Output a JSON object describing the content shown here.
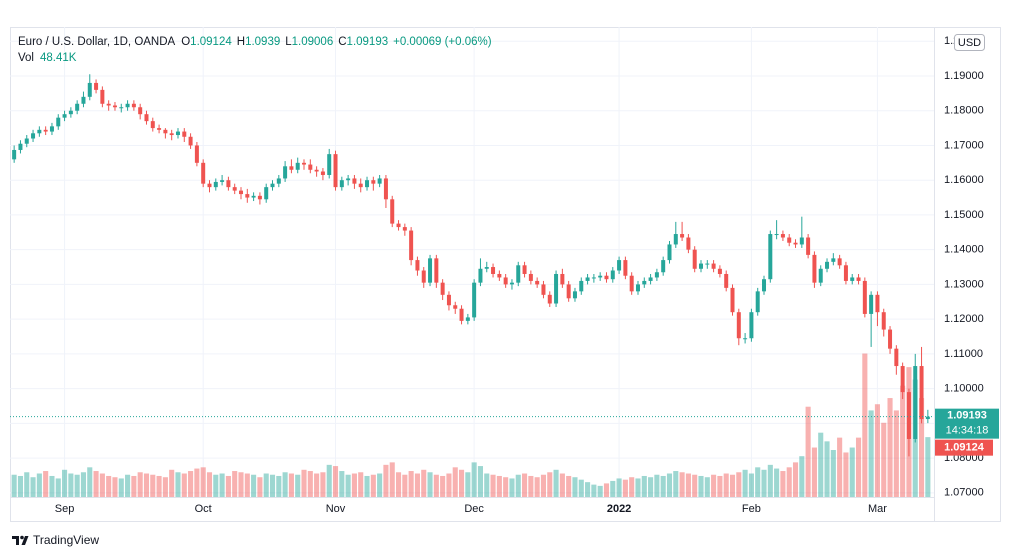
{
  "chart_data": {
    "type": "candlestick",
    "title": "Euro / U.S. Dollar, 1D, OANDA",
    "ohlc_labels": [
      "O",
      "H",
      "L",
      "C"
    ],
    "change_label": "+0.00069 (+0.06%)",
    "volume_title": "Vol",
    "volume_last_label": "48.41K",
    "currency": "USD",
    "countdown": "14:34:18",
    "brand": "TradingView",
    "up_color": "#26a69a",
    "down_color": "#ef5350",
    "volume_up_color": "rgba(38,166,154,0.45)",
    "volume_down_color": "rgba(239,83,80,0.45)",
    "grid": true,
    "categories": [
      null,
      null,
      null,
      null,
      null,
      null,
      null,
      null,
      "Sep",
      null,
      null,
      null,
      null,
      null,
      null,
      null,
      null,
      null,
      null,
      null,
      null,
      null,
      null,
      null,
      null,
      null,
      null,
      null,
      null,
      null,
      "Oct",
      null,
      null,
      null,
      null,
      null,
      null,
      null,
      null,
      null,
      null,
      null,
      null,
      null,
      null,
      null,
      null,
      null,
      null,
      null,
      null,
      "Nov",
      null,
      null,
      null,
      null,
      null,
      null,
      null,
      null,
      null,
      null,
      null,
      null,
      null,
      null,
      null,
      null,
      null,
      null,
      null,
      null,
      null,
      "Dec",
      null,
      null,
      null,
      null,
      null,
      null,
      null,
      null,
      null,
      null,
      null,
      null,
      null,
      null,
      null,
      null,
      null,
      null,
      null,
      null,
      null,
      null,
      "2022",
      null,
      null,
      null,
      null,
      null,
      null,
      null,
      null,
      null,
      null,
      null,
      null,
      null,
      null,
      null,
      null,
      null,
      null,
      null,
      null,
      "Feb",
      null,
      null,
      null,
      null,
      null,
      null,
      null,
      null,
      null,
      null,
      null,
      null,
      null,
      null,
      null,
      null,
      null,
      null,
      null,
      "Mar",
      null,
      null,
      null,
      null,
      null,
      null,
      null,
      null
    ],
    "open": [
      1.166,
      1.1687,
      1.1705,
      1.172,
      1.1735,
      1.1745,
      1.174,
      1.1755,
      1.178,
      1.179,
      1.18,
      1.182,
      1.184,
      1.188,
      1.186,
      1.182,
      1.1815,
      1.181,
      1.181,
      1.182,
      1.181,
      1.179,
      1.177,
      1.175,
      1.1745,
      1.1735,
      1.173,
      1.174,
      1.1725,
      1.17,
      1.165,
      1.159,
      1.158,
      1.1595,
      1.16,
      1.158,
      1.157,
      1.156,
      1.155,
      1.1555,
      1.1545,
      1.158,
      1.159,
      1.1605,
      1.164,
      1.163,
      1.165,
      1.1645,
      1.163,
      1.1625,
      1.1615,
      1.1675,
      1.158,
      1.16,
      1.1605,
      1.159,
      1.158,
      1.16,
      1.159,
      1.1605,
      1.1545,
      1.1475,
      1.1465,
      1.1455,
      1.137,
      1.134,
      1.1305,
      1.1375,
      1.1305,
      1.127,
      1.124,
      1.123,
      1.1195,
      1.1205,
      1.1305,
      1.1345,
      1.135,
      1.133,
      1.132,
      1.13,
      1.1305,
      1.1355,
      1.133,
      1.131,
      1.13,
      1.127,
      1.1245,
      1.133,
      1.13,
      1.126,
      1.128,
      1.131,
      1.132,
      1.132,
      1.1325,
      1.1315,
      1.134,
      1.137,
      1.1325,
      1.128,
      1.13,
      1.131,
      1.132,
      1.1335,
      1.137,
      1.1415,
      1.1445,
      1.1435,
      1.14,
      1.1345,
      1.136,
      1.136,
      1.1345,
      1.133,
      1.129,
      1.122,
      1.1145,
      1.1145,
      1.122,
      1.128,
      1.1315,
      1.1445,
      1.1445,
      1.1435,
      1.142,
      1.1415,
      1.1435,
      1.1385,
      1.1305,
      1.1345,
      1.1365,
      1.1375,
      1.1355,
      1.131,
      1.132,
      1.131,
      1.1215,
      1.127,
      1.122,
      1.117,
      1.1115,
      1.1065,
      1.099,
      1.0855,
      1.1065,
      1.09124
    ],
    "high": [
      1.17,
      1.1715,
      1.173,
      1.1745,
      1.1755,
      1.1755,
      1.1765,
      1.179,
      1.18,
      1.181,
      1.183,
      1.1855,
      1.1905,
      1.189,
      1.187,
      1.183,
      1.1825,
      1.182,
      1.183,
      1.183,
      1.182,
      1.18,
      1.178,
      1.176,
      1.175,
      1.1745,
      1.175,
      1.175,
      1.1735,
      1.171,
      1.166,
      1.16,
      1.1605,
      1.1615,
      1.161,
      1.159,
      1.158,
      1.1575,
      1.1565,
      1.1565,
      1.159,
      1.16,
      1.1615,
      1.1655,
      1.166,
      1.1665,
      1.166,
      1.166,
      1.164,
      1.1635,
      1.169,
      1.1685,
      1.161,
      1.1615,
      1.1615,
      1.1605,
      1.161,
      1.161,
      1.1615,
      1.1615,
      1.1555,
      1.1485,
      1.1475,
      1.1465,
      1.138,
      1.135,
      1.1385,
      1.1385,
      1.1315,
      1.128,
      1.125,
      1.124,
      1.1215,
      1.1315,
      1.1375,
      1.1365,
      1.136,
      1.134,
      1.133,
      1.1315,
      1.1365,
      1.1365,
      1.134,
      1.132,
      1.131,
      1.128,
      1.134,
      1.1345,
      1.131,
      1.129,
      1.132,
      1.133,
      1.133,
      1.1335,
      1.1335,
      1.135,
      1.138,
      1.138,
      1.1335,
      1.131,
      1.132,
      1.133,
      1.1345,
      1.138,
      1.1425,
      1.148,
      1.148,
      1.1445,
      1.141,
      1.137,
      1.137,
      1.137,
      1.1355,
      1.134,
      1.13,
      1.123,
      1.116,
      1.123,
      1.129,
      1.1325,
      1.1455,
      1.1485,
      1.1455,
      1.1445,
      1.143,
      1.1495,
      1.1445,
      1.1395,
      1.1355,
      1.1375,
      1.139,
      1.1385,
      1.1365,
      1.133,
      1.133,
      1.132,
      1.128,
      1.128,
      1.123,
      1.118,
      1.1125,
      1.1075,
      1.1,
      1.11,
      1.112,
      1.0939
    ],
    "low": [
      1.165,
      1.1677,
      1.1695,
      1.171,
      1.1725,
      1.173,
      1.173,
      1.1745,
      1.177,
      1.178,
      1.179,
      1.181,
      1.183,
      1.185,
      1.181,
      1.18,
      1.18,
      1.1795,
      1.18,
      1.18,
      1.1775,
      1.176,
      1.174,
      1.1735,
      1.172,
      1.1715,
      1.172,
      1.171,
      1.169,
      1.164,
      1.158,
      1.1565,
      1.157,
      1.1585,
      1.157,
      1.156,
      1.1545,
      1.1535,
      1.154,
      1.153,
      1.1535,
      1.157,
      1.158,
      1.1595,
      1.162,
      1.162,
      1.163,
      1.162,
      1.161,
      1.16,
      1.1605,
      1.157,
      1.157,
      1.1585,
      1.1575,
      1.1565,
      1.157,
      1.157,
      1.158,
      1.152,
      1.1465,
      1.1455,
      1.144,
      1.1355,
      1.1325,
      1.129,
      1.1295,
      1.129,
      1.1255,
      1.1225,
      1.1215,
      1.1185,
      1.1185,
      1.1195,
      1.1295,
      1.1335,
      1.132,
      1.131,
      1.129,
      1.1285,
      1.1295,
      1.132,
      1.13,
      1.129,
      1.126,
      1.1235,
      1.1235,
      1.129,
      1.125,
      1.125,
      1.127,
      1.13,
      1.1305,
      1.131,
      1.1305,
      1.1305,
      1.133,
      1.1315,
      1.127,
      1.127,
      1.129,
      1.13,
      1.131,
      1.1325,
      1.136,
      1.1405,
      1.1425,
      1.139,
      1.1335,
      1.1335,
      1.1345,
      1.1335,
      1.132,
      1.128,
      1.121,
      1.1125,
      1.113,
      1.1135,
      1.121,
      1.127,
      1.1305,
      1.143,
      1.1425,
      1.141,
      1.1405,
      1.1405,
      1.1375,
      1.129,
      1.1295,
      1.1335,
      1.1355,
      1.1345,
      1.13,
      1.13,
      1.13,
      1.1205,
      1.112,
      1.118,
      1.115,
      1.11,
      1.104,
      1.097,
      1.0805,
      1.0845,
      1.09,
      1.09006
    ],
    "close": [
      1.1687,
      1.1705,
      1.172,
      1.1735,
      1.1745,
      1.174,
      1.1755,
      1.178,
      1.179,
      1.18,
      1.182,
      1.184,
      1.188,
      1.186,
      1.182,
      1.1815,
      1.181,
      1.181,
      1.182,
      1.181,
      1.179,
      1.177,
      1.175,
      1.1745,
      1.1735,
      1.173,
      1.174,
      1.1725,
      1.17,
      1.165,
      1.159,
      1.158,
      1.1595,
      1.16,
      1.158,
      1.157,
      1.156,
      1.155,
      1.1555,
      1.1545,
      1.158,
      1.159,
      1.1605,
      1.164,
      1.163,
      1.165,
      1.1645,
      1.163,
      1.1625,
      1.1615,
      1.1675,
      1.158,
      1.16,
      1.1605,
      1.159,
      1.158,
      1.16,
      1.159,
      1.1605,
      1.1545,
      1.1475,
      1.1465,
      1.1455,
      1.137,
      1.134,
      1.1305,
      1.1375,
      1.1305,
      1.127,
      1.124,
      1.123,
      1.1195,
      1.1205,
      1.1305,
      1.1345,
      1.135,
      1.133,
      1.132,
      1.13,
      1.1305,
      1.1355,
      1.133,
      1.131,
      1.13,
      1.127,
      1.1245,
      1.133,
      1.13,
      1.126,
      1.128,
      1.131,
      1.132,
      1.132,
      1.1325,
      1.1315,
      1.134,
      1.137,
      1.1325,
      1.128,
      1.13,
      1.131,
      1.132,
      1.1335,
      1.137,
      1.1415,
      1.1445,
      1.1435,
      1.14,
      1.1345,
      1.136,
      1.136,
      1.1345,
      1.133,
      1.129,
      1.122,
      1.1145,
      1.1145,
      1.122,
      1.128,
      1.1315,
      1.1445,
      1.1445,
      1.1435,
      1.142,
      1.1415,
      1.1435,
      1.1385,
      1.1305,
      1.1345,
      1.1365,
      1.1375,
      1.1355,
      1.131,
      1.132,
      1.131,
      1.1215,
      1.127,
      1.122,
      1.117,
      1.1115,
      1.1065,
      1.099,
      1.0855,
      1.1065,
      1.09124,
      1.09193
    ],
    "volume": [
      18,
      17,
      20,
      16,
      19,
      21,
      17,
      15,
      22,
      19,
      18,
      20,
      24,
      21,
      19,
      17,
      16,
      15,
      18,
      17,
      20,
      19,
      18,
      17,
      16,
      22,
      20,
      19,
      21,
      23,
      24,
      20,
      18,
      19,
      17,
      21,
      20,
      19,
      18,
      16,
      19,
      18,
      17,
      20,
      19,
      18,
      22,
      21,
      19,
      20,
      26,
      25,
      21,
      18,
      19,
      20,
      17,
      18,
      19,
      26,
      28,
      20,
      18,
      21,
      19,
      22,
      20,
      18,
      17,
      19,
      24,
      22,
      20,
      28,
      25,
      19,
      18,
      17,
      16,
      15,
      18,
      19,
      17,
      16,
      18,
      20,
      22,
      19,
      17,
      16,
      14,
      12,
      10,
      9,
      11,
      13,
      15,
      14,
      16,
      15,
      17,
      16,
      18,
      17,
      19,
      21,
      20,
      19,
      18,
      17,
      16,
      18,
      17,
      19,
      18,
      20,
      22,
      19,
      24,
      22,
      26,
      23,
      21,
      24,
      28,
      33,
      73,
      40,
      52,
      45,
      38,
      48,
      36,
      40,
      48,
      116,
      70,
      75,
      60,
      80,
      70,
      90,
      105,
      95,
      80,
      48.41
    ],
    "ylim": [
      1.0688,
      1.2041
    ],
    "yticks": [
      {
        "value": 1.07,
        "label": "1.07000"
      },
      {
        "value": 1.08,
        "label": "1.08000"
      },
      {
        "value": 1.09,
        "label": "1.09000"
      },
      {
        "value": 1.1,
        "label": "1.10000"
      },
      {
        "value": 1.11,
        "label": "1.11000"
      },
      {
        "value": 1.12,
        "label": "1.12000"
      },
      {
        "value": 1.13,
        "label": "1.13000"
      },
      {
        "value": 1.14,
        "label": "1.14000"
      },
      {
        "value": 1.15,
        "label": "1.15000"
      },
      {
        "value": 1.16,
        "label": "1.16000"
      },
      {
        "value": 1.17,
        "label": "1.17000"
      },
      {
        "value": 1.18,
        "label": "1.18000"
      },
      {
        "value": 1.19,
        "label": "1.19000"
      },
      {
        "value": 1.2,
        "label": "1.20000"
      }
    ],
    "y2lim": [
      0,
      380
    ]
  }
}
